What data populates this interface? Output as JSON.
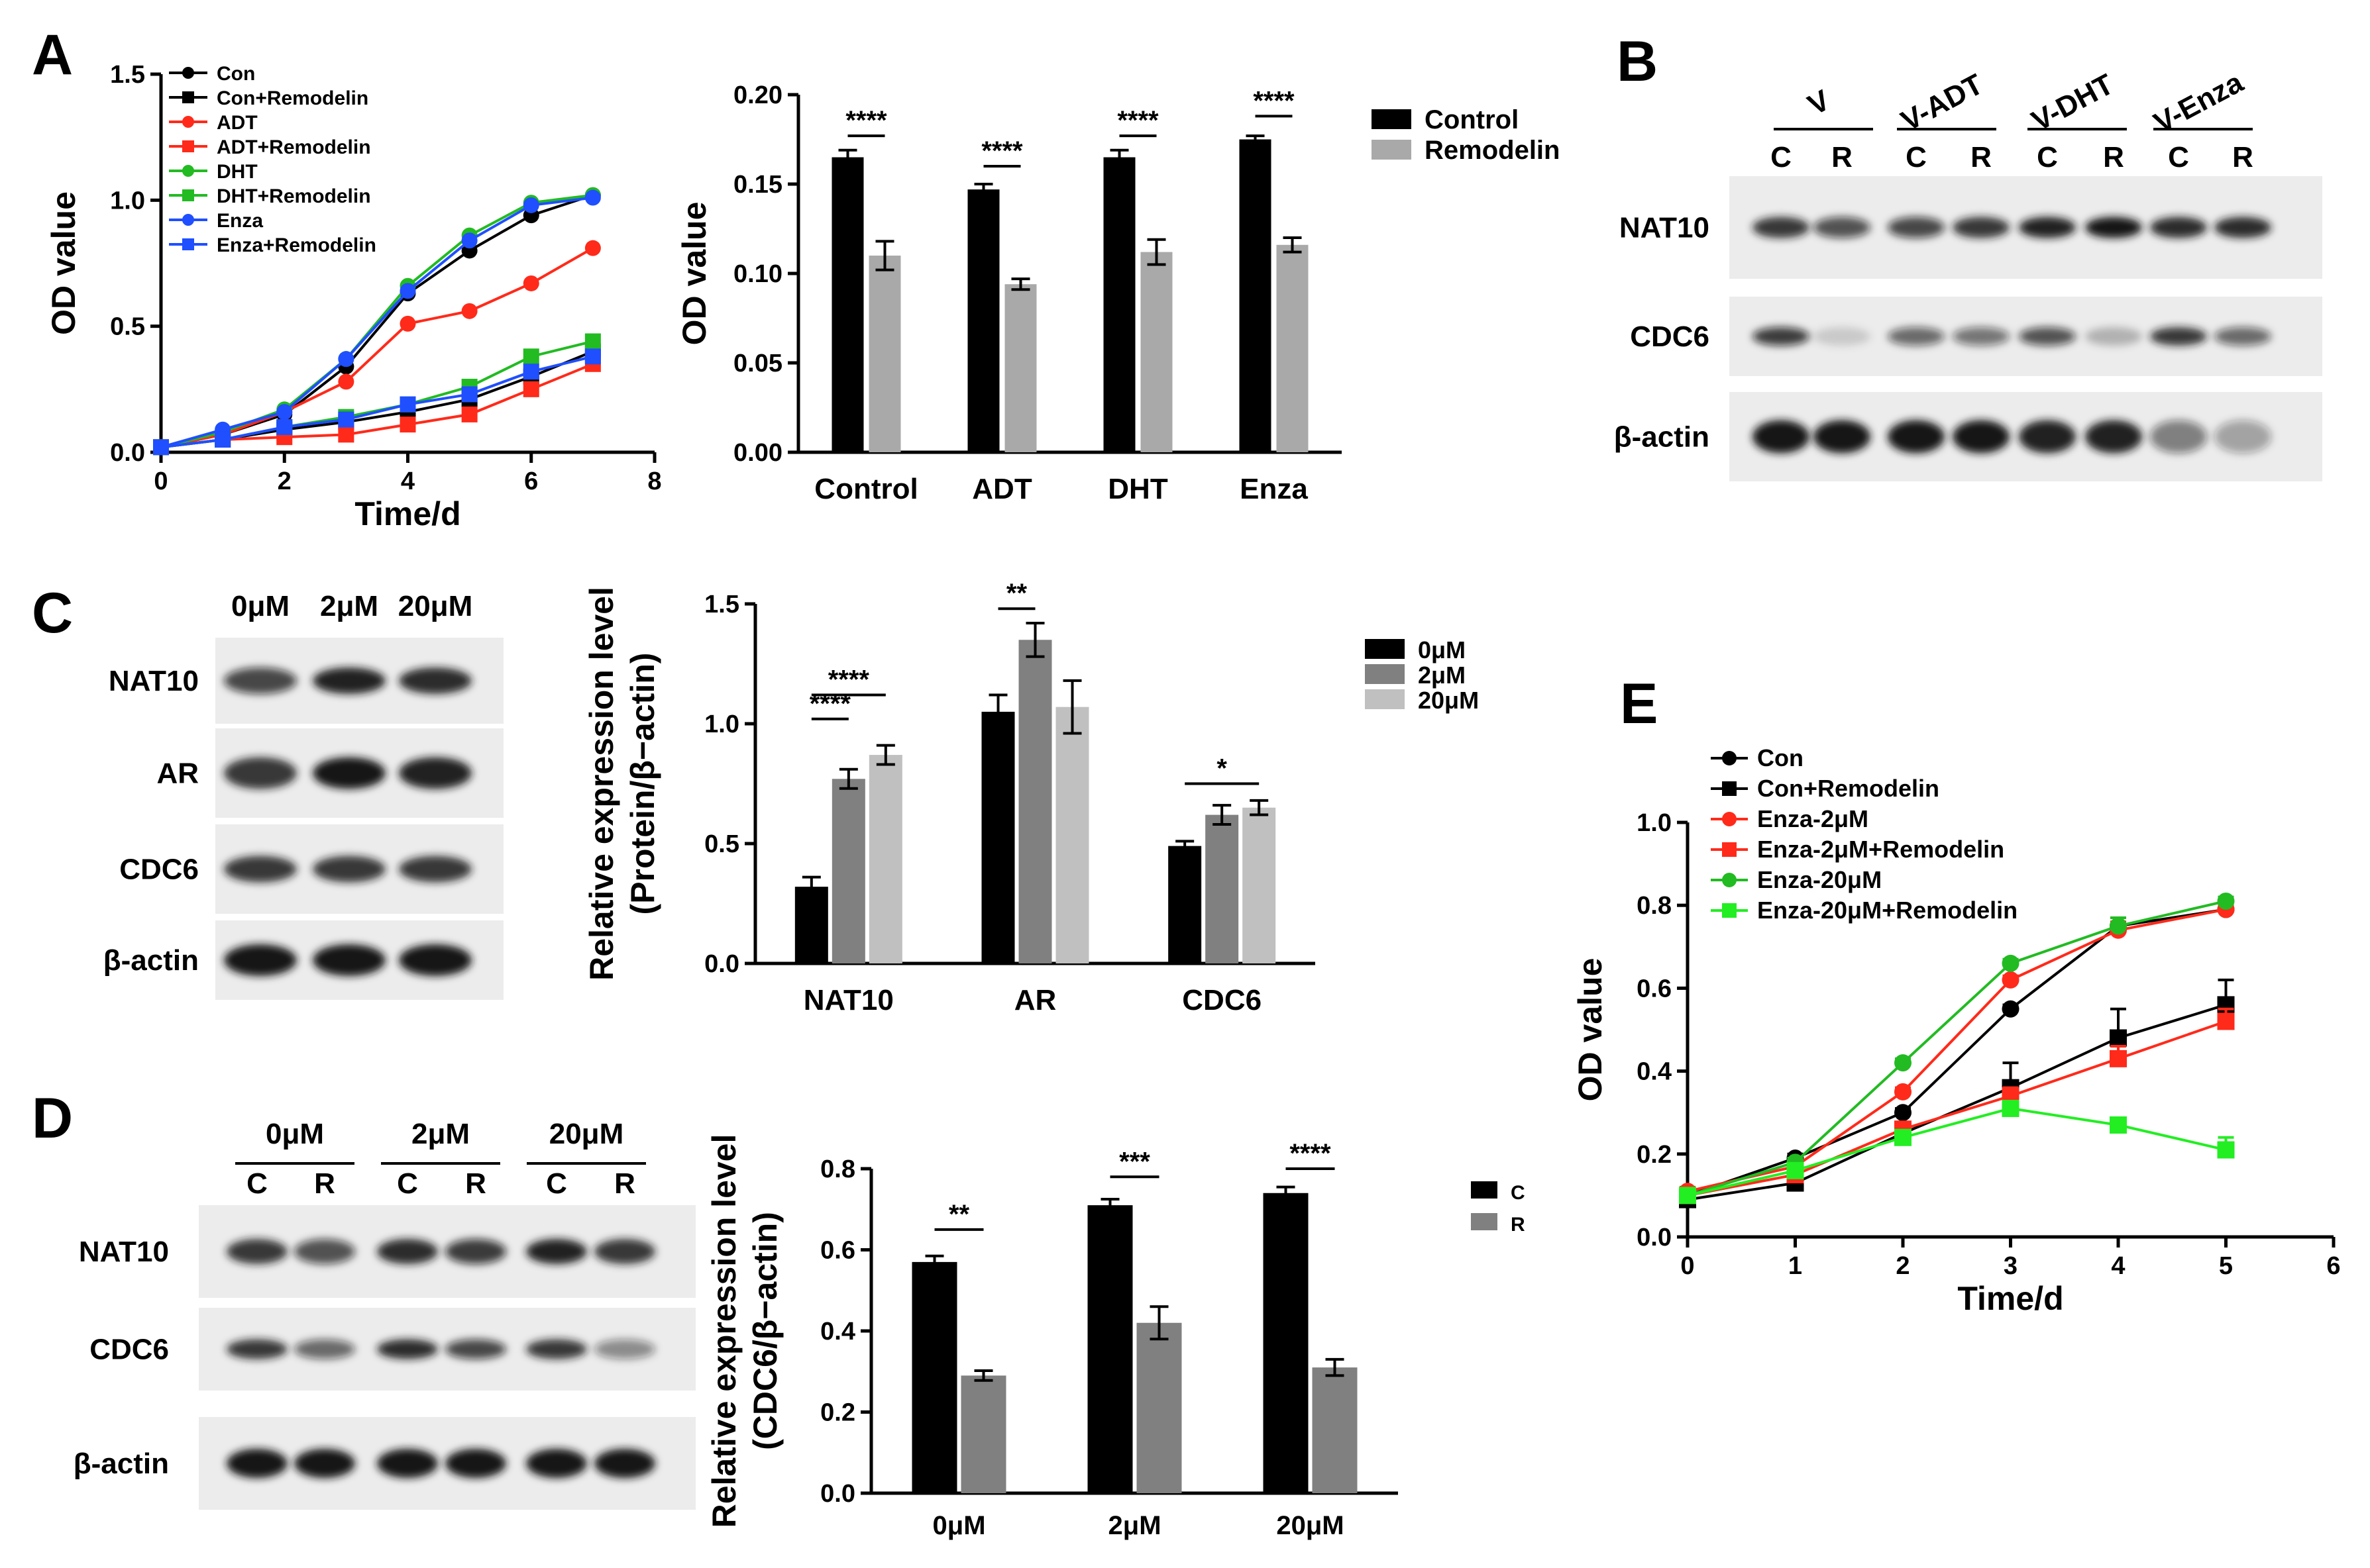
{
  "panels": {
    "A": {
      "letter": "A"
    },
    "B": {
      "letter": "B"
    },
    "C": {
      "letter": "C"
    },
    "D": {
      "letter": "D"
    },
    "E": {
      "letter": "E"
    }
  },
  "blots": {
    "B": {
      "groups": [
        "V",
        "V-ADT",
        "V-DHT",
        "V-Enza"
      ],
      "lanes": [
        "C",
        "R",
        "C",
        "R",
        "C",
        "R",
        "C",
        "R"
      ],
      "rows": [
        "NAT10",
        "CDC6",
        "β-actin"
      ]
    },
    "C": {
      "lanes": [
        "0μM",
        "2μM",
        "20μM"
      ],
      "rows": [
        "NAT10",
        "AR",
        "CDC6",
        "β-actin"
      ]
    },
    "D": {
      "groups": [
        "0μM",
        "2μM",
        "20μM"
      ],
      "lanes": [
        "C",
        "R",
        "C",
        "R",
        "C",
        "R"
      ],
      "rows": [
        "NAT10",
        "CDC6",
        "β-actin"
      ]
    }
  },
  "chart_data": [
    {
      "id": "A-line",
      "type": "line",
      "xlabel": "Time/d",
      "ylabel": "OD value",
      "xlim": [
        0,
        8
      ],
      "ylim": [
        0,
        1.5
      ],
      "xticks": [
        "0",
        "2",
        "4",
        "6",
        "8"
      ],
      "yticks": [
        "0.0",
        "0.5",
        "1.0",
        "1.5"
      ],
      "x": [
        0,
        1,
        2,
        3,
        4,
        5,
        6,
        7
      ],
      "series": [
        {
          "name": "Con",
          "color": "#000000",
          "marker": "circle",
          "values": [
            0.02,
            0.07,
            0.15,
            0.34,
            0.63,
            0.8,
            0.94,
            1.02
          ]
        },
        {
          "name": "Con+Remodelin",
          "color": "#000000",
          "marker": "square",
          "values": [
            0.02,
            0.05,
            0.09,
            0.12,
            0.16,
            0.21,
            0.3,
            0.4
          ]
        },
        {
          "name": "ADT",
          "color": "#ff2a1a",
          "marker": "circle",
          "values": [
            0.02,
            0.07,
            0.16,
            0.28,
            0.51,
            0.56,
            0.67,
            0.81
          ]
        },
        {
          "name": "ADT+Remodelin",
          "color": "#ff2a1a",
          "marker": "square",
          "values": [
            0.02,
            0.05,
            0.06,
            0.07,
            0.11,
            0.15,
            0.25,
            0.35
          ]
        },
        {
          "name": "DHT",
          "color": "#22bb22",
          "marker": "circle",
          "values": [
            0.02,
            0.08,
            0.17,
            0.37,
            0.66,
            0.86,
            0.99,
            1.02
          ]
        },
        {
          "name": "DHT+Remodelin",
          "color": "#22bb22",
          "marker": "square",
          "values": [
            0.02,
            0.05,
            0.1,
            0.14,
            0.19,
            0.26,
            0.38,
            0.44
          ]
        },
        {
          "name": "Enza",
          "color": "#1f4fff",
          "marker": "circle",
          "values": [
            0.02,
            0.09,
            0.16,
            0.37,
            0.64,
            0.84,
            0.98,
            1.01
          ]
        },
        {
          "name": "Enza+Remodelin",
          "color": "#1f4fff",
          "marker": "square",
          "values": [
            0.02,
            0.05,
            0.1,
            0.13,
            0.19,
            0.23,
            0.32,
            0.38
          ]
        }
      ]
    },
    {
      "id": "A-bar",
      "type": "bar",
      "ylabel": "OD value",
      "ylim": [
        0,
        0.2
      ],
      "yticks": [
        "0.00",
        "0.05",
        "0.10",
        "0.15",
        "0.20"
      ],
      "categories": [
        "Control",
        "ADT",
        "DHT",
        "Enza"
      ],
      "series": [
        {
          "name": "Control",
          "color": "#000000",
          "values": [
            0.165,
            0.147,
            0.165,
            0.175
          ],
          "err": [
            0.004,
            0.003,
            0.004,
            0.002
          ]
        },
        {
          "name": "Remodelin",
          "color": "#a9a9a9",
          "values": [
            0.11,
            0.094,
            0.112,
            0.116
          ],
          "err": [
            0.008,
            0.003,
            0.007,
            0.004
          ]
        }
      ],
      "significance": [
        "****",
        "****",
        "****",
        "****"
      ]
    },
    {
      "id": "C-bar",
      "type": "bar",
      "ylabel": "Relative expression level",
      "ylabel2": "(Protein/β−actin)",
      "ylim": [
        0,
        1.5
      ],
      "yticks": [
        "0.0",
        "0.5",
        "1.0",
        "1.5"
      ],
      "categories": [
        "NAT10",
        "AR",
        "CDC6"
      ],
      "series": [
        {
          "name": "0μM",
          "color": "#000000",
          "values": [
            0.32,
            1.05,
            0.49
          ],
          "err": [
            0.04,
            0.07,
            0.02
          ]
        },
        {
          "name": "2μM",
          "color": "#808080",
          "values": [
            0.77,
            1.35,
            0.62
          ],
          "err": [
            0.04,
            0.07,
            0.04
          ]
        },
        {
          "name": "20μM",
          "color": "#c0c0c0",
          "values": [
            0.87,
            1.07,
            0.65
          ],
          "err": [
            0.04,
            0.11,
            0.03
          ]
        }
      ],
      "significance": [
        "****",
        "****",
        "**",
        "*"
      ]
    },
    {
      "id": "D-bar",
      "type": "bar",
      "ylabel": "Relative expression level",
      "ylabel2": "(CDC6/β−actin)",
      "ylim": [
        0,
        0.8
      ],
      "yticks": [
        "0.0",
        "0.2",
        "0.4",
        "0.6",
        "0.8"
      ],
      "categories": [
        "0μM",
        "2μM",
        "20μM"
      ],
      "series": [
        {
          "name": "C",
          "color": "#000000",
          "values": [
            0.57,
            0.71,
            0.74
          ],
          "err": [
            0.015,
            0.015,
            0.015
          ]
        },
        {
          "name": "R",
          "color": "#808080",
          "values": [
            0.29,
            0.42,
            0.31
          ],
          "err": [
            0.012,
            0.04,
            0.02
          ]
        }
      ],
      "significance": [
        "**",
        "***",
        "****"
      ]
    },
    {
      "id": "E-line",
      "type": "line",
      "xlabel": "Time/d",
      "ylabel": "OD value",
      "xlim": [
        0,
        6
      ],
      "ylim": [
        0,
        1.0
      ],
      "xticks": [
        "0",
        "1",
        "2",
        "3",
        "4",
        "5",
        "6"
      ],
      "yticks": [
        "0.0",
        "0.2",
        "0.4",
        "0.6",
        "0.8",
        "1.0"
      ],
      "x": [
        0,
        1,
        2,
        3,
        4,
        5
      ],
      "series": [
        {
          "name": "Con",
          "color": "#000000",
          "marker": "circle",
          "values": [
            0.1,
            0.19,
            0.3,
            0.55,
            0.75,
            0.79
          ],
          "err": [
            0.01,
            0.01,
            0.01,
            0.01,
            0.02,
            0.01
          ]
        },
        {
          "name": "Con+Remodelin",
          "color": "#000000",
          "marker": "square",
          "values": [
            0.09,
            0.13,
            0.25,
            0.36,
            0.48,
            0.56
          ],
          "err": [
            0.01,
            0.01,
            0.01,
            0.06,
            0.07,
            0.06
          ]
        },
        {
          "name": "Enza-2μM",
          "color": "#ff2a1a",
          "marker": "circle",
          "values": [
            0.11,
            0.17,
            0.35,
            0.62,
            0.74,
            0.79
          ],
          "err": [
            0.01,
            0.01,
            0.01,
            0.01,
            0.02,
            0.01
          ]
        },
        {
          "name": "Enza-2μM+Remodelin",
          "color": "#ff2a1a",
          "marker": "square",
          "values": [
            0.1,
            0.15,
            0.26,
            0.34,
            0.43,
            0.52
          ],
          "err": [
            0.01,
            0.01,
            0.01,
            0.02,
            0.03,
            0.03
          ]
        },
        {
          "name": "Enza-20μM",
          "color": "#22bb22",
          "marker": "circle",
          "values": [
            0.1,
            0.18,
            0.42,
            0.66,
            0.75,
            0.81
          ],
          "err": [
            0.01,
            0.01,
            0.01,
            0.01,
            0.02,
            0.01
          ]
        },
        {
          "name": "Enza-20μM+Remodelin",
          "color": "#22ee22",
          "marker": "square",
          "values": [
            0.1,
            0.16,
            0.24,
            0.31,
            0.27,
            0.21
          ],
          "err": [
            0.01,
            0.01,
            0.01,
            0.01,
            0.01,
            0.03
          ]
        }
      ]
    }
  ]
}
